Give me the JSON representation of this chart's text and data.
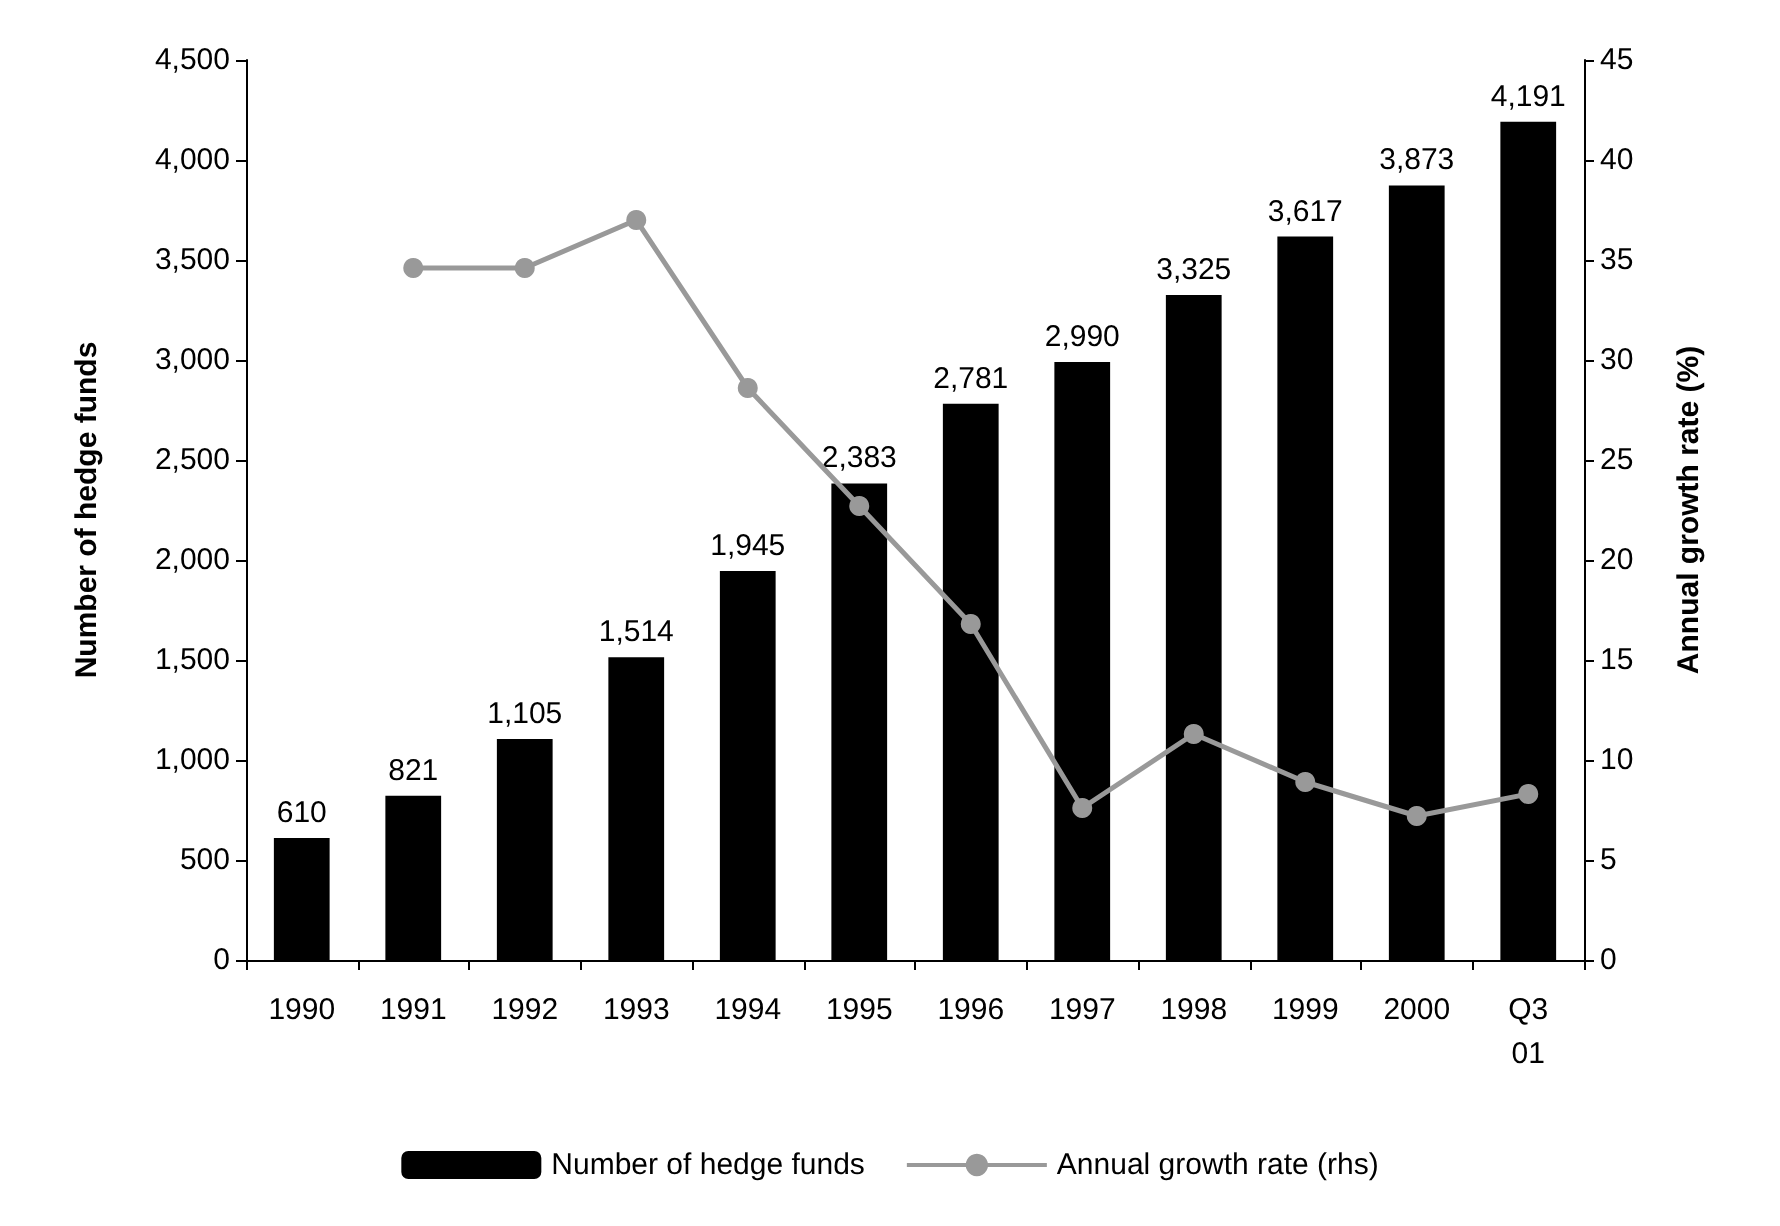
{
  "chart_data": {
    "type": "bar",
    "ylabel": "Number of hedge funds",
    "y2label": "Annual growth rate (%)",
    "categories": [
      "1990",
      "1991",
      "1992",
      "1993",
      "1994",
      "1995",
      "1996",
      "1997",
      "1998",
      "1999",
      "2000",
      "Q3\n01"
    ],
    "series": [
      {
        "name": "Number of hedge funds",
        "color": "#000000",
        "values": [
          610,
          821,
          1105,
          1514,
          1945,
          2383,
          2781,
          2990,
          3325,
          3617,
          3873,
          4191
        ],
        "value_labels": [
          "610",
          "821",
          "1,105",
          "1,514",
          "1,945",
          "2,383",
          "2,781",
          "2,990",
          "3,325",
          "3,617",
          "3,873",
          "4,191"
        ]
      },
      {
        "name": "Annual growth rate (rhs)",
        "type": "line",
        "axis": "y2",
        "color": "#999999",
        "marker": "circle",
        "values": [
          null,
          34.6,
          34.6,
          37.0,
          28.6,
          22.7,
          16.8,
          7.6,
          11.3,
          8.9,
          7.2,
          8.3
        ]
      }
    ],
    "ylim": [
      0,
      4500
    ],
    "yticks": [
      0,
      500,
      {
        "value": 1000,
        "label": "1,000"
      },
      {
        "value": 1500,
        "label": "1,500"
      },
      {
        "value": 2000,
        "label": "2,000"
      },
      {
        "value": 2500,
        "label": "2,500"
      },
      {
        "value": 3000,
        "label": "3,000"
      },
      {
        "value": 3500,
        "label": "3,500"
      },
      {
        "value": 4000,
        "label": "4,000"
      },
      {
        "value": 4500,
        "label": "4,500"
      }
    ],
    "y2lim": [
      0,
      45
    ],
    "y2ticks": [
      0,
      5,
      10,
      15,
      20,
      25,
      30,
      35,
      40,
      45
    ],
    "grid": false,
    "legend": "bottom"
  }
}
